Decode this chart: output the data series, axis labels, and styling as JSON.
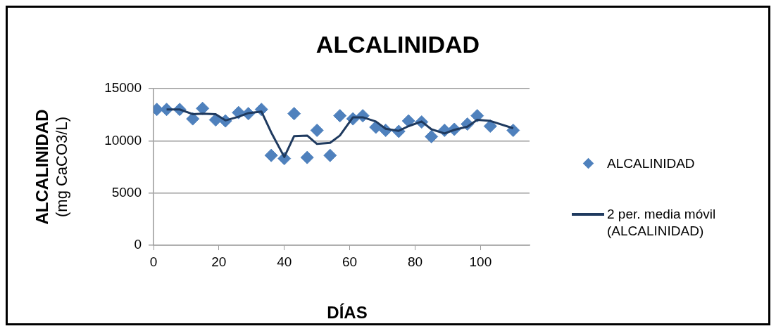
{
  "chart_data": {
    "type": "scatter",
    "title": "ALCALINIDAD",
    "xlabel": "DÍAS",
    "ylabel": "ALCALINIDAD (mg CaCO3/L)",
    "xlim": [
      0,
      115
    ],
    "xticks": [
      0,
      20,
      40,
      60,
      80,
      100
    ],
    "ylim": [
      0,
      15000
    ],
    "yticks": [
      0,
      5000,
      10000,
      15000
    ],
    "grid": "y",
    "legend": "right",
    "series": [
      {
        "name": "ALCALINIDAD",
        "type": "scatter",
        "marker": "diamond",
        "color": "#4f81bd",
        "x": [
          1,
          4,
          8,
          12,
          15,
          19,
          22,
          26,
          29,
          33,
          36,
          40,
          43,
          47,
          50,
          54,
          57,
          61,
          64,
          68,
          71,
          75,
          78,
          82,
          85,
          89,
          92,
          96,
          99,
          103,
          110
        ],
        "values": [
          13000,
          13000,
          13000,
          12100,
          13100,
          12000,
          11900,
          12700,
          12600,
          13000,
          8600,
          8300,
          12600,
          8400,
          11000,
          8600,
          12400,
          12100,
          12400,
          11300,
          11000,
          10900,
          11900,
          11800,
          10400,
          11000,
          11100,
          11600,
          12400,
          11400,
          11000
        ]
      },
      {
        "name": "2 per. media móvil (ALCALINIDAD)",
        "type": "line",
        "marker": "none",
        "line_style": "solid",
        "color": "#1f3a5f",
        "x": [
          4,
          8,
          12,
          15,
          19,
          22,
          26,
          29,
          33,
          36,
          40,
          43,
          47,
          50,
          54,
          57,
          61,
          64,
          68,
          71,
          75,
          78,
          82,
          85,
          89,
          92,
          96,
          99,
          103,
          110
        ],
        "values": [
          13000,
          13000,
          12550,
          12600,
          12550,
          11950,
          12300,
          12650,
          12800,
          10800,
          8450,
          10450,
          10500,
          9700,
          9800,
          10500,
          12250,
          12250,
          11850,
          11150,
          10950,
          11400,
          11850,
          11100,
          10700,
          11050,
          11350,
          12000,
          11900,
          11200
        ]
      }
    ]
  }
}
